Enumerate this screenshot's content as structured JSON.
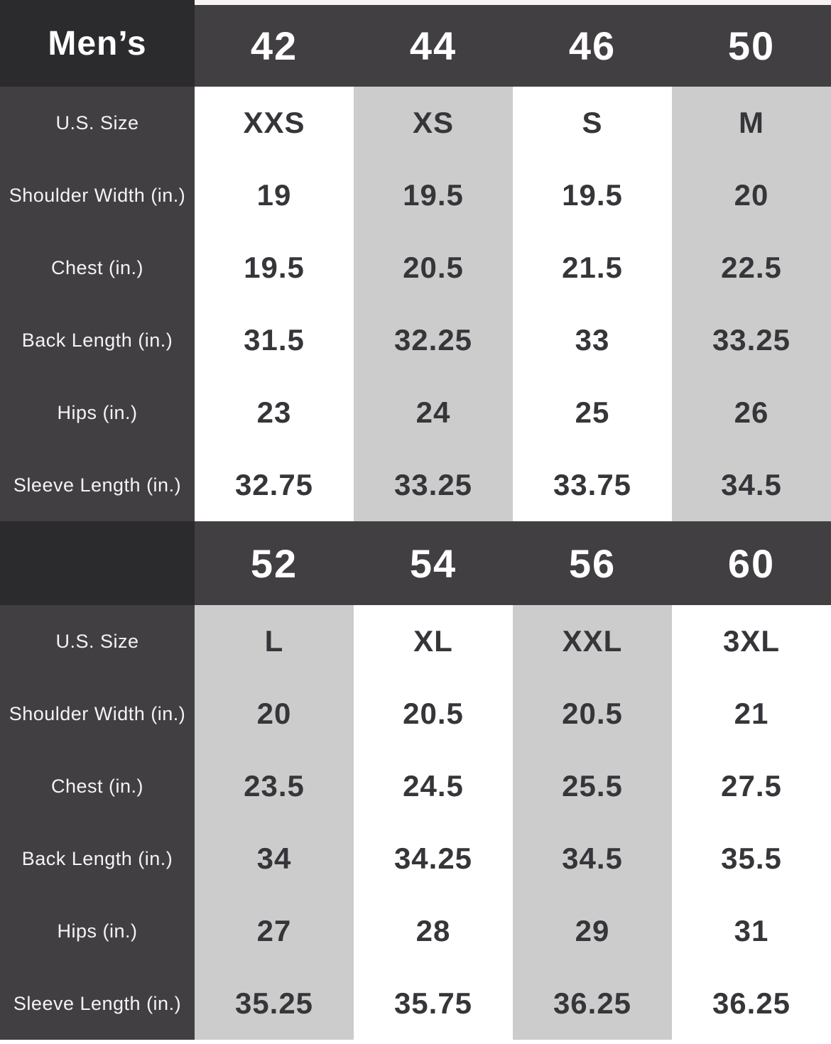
{
  "chart_data": {
    "type": "table",
    "title": "Men’s",
    "row_labels": [
      "U.S. Size",
      "Shoulder Width (in.)",
      "Chest (in.)",
      "Back Length (in.)",
      "Hips (in.)",
      "Sleeve Length (in.)"
    ],
    "sections": [
      {
        "header_label": "Men’s",
        "sizes": [
          "42",
          "44",
          "46",
          "50"
        ],
        "rows": [
          {
            "label": "U.S. Size",
            "values": [
              "XXS",
              "XS",
              "S",
              "M"
            ]
          },
          {
            "label": "Shoulder Width (in.)",
            "values": [
              "19",
              "19.5",
              "19.5",
              "20"
            ]
          },
          {
            "label": "Chest (in.)",
            "values": [
              "19.5",
              "20.5",
              "21.5",
              "22.5"
            ]
          },
          {
            "label": "Back Length (in.)",
            "values": [
              "31.5",
              "32.25",
              "33",
              "33.25"
            ]
          },
          {
            "label": "Hips (in.)",
            "values": [
              "23",
              "24",
              "25",
              "26"
            ]
          },
          {
            "label": "Sleeve Length (in.)",
            "values": [
              "32.75",
              "33.25",
              "33.75",
              "34.5"
            ]
          }
        ],
        "column_shading": [
          "white",
          "gray",
          "white",
          "gray"
        ]
      },
      {
        "header_label": "",
        "sizes": [
          "52",
          "54",
          "56",
          "60"
        ],
        "rows": [
          {
            "label": "U.S. Size",
            "values": [
              "L",
              "XL",
              "XXL",
              "3XL"
            ]
          },
          {
            "label": "Shoulder Width (in.)",
            "values": [
              "20",
              "20.5",
              "20.5",
              "21"
            ]
          },
          {
            "label": "Chest (in.)",
            "values": [
              "23.5",
              "24.5",
              "25.5",
              "27.5"
            ]
          },
          {
            "label": "Back Length (in.)",
            "values": [
              "34",
              "34.25",
              "34.5",
              "35.5"
            ]
          },
          {
            "label": "Hips (in.)",
            "values": [
              "27",
              "28",
              "29",
              "31"
            ]
          },
          {
            "label": "Sleeve Length (in.)",
            "values": [
              "35.25",
              "35.75",
              "36.25",
              "36.25"
            ]
          }
        ],
        "column_shading": [
          "gray",
          "white",
          "gray",
          "white"
        ]
      }
    ],
    "layout": {
      "grid": "off",
      "legend": "none"
    }
  },
  "colors": {
    "header_bg": "#413f42",
    "corner_bg": "#2b2a2c",
    "label_column_bg": "#413f42",
    "stripe_gray": "#cdcccd",
    "stripe_white": "#ffffff",
    "header_text": "#ffffff",
    "label_text": "#f4f3f4",
    "value_text": "#363539"
  }
}
